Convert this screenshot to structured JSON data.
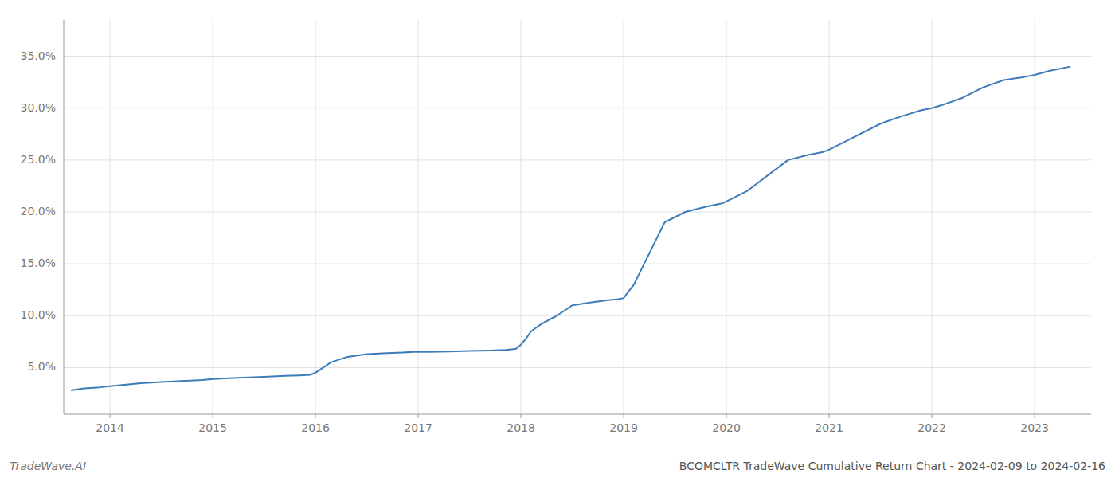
{
  "chart_data": {
    "type": "line",
    "title": "BCOMCLTR TradeWave Cumulative Return Chart - 2024-02-09 to 2024-02-16",
    "annotations": [
      "TradeWave.AI"
    ],
    "color": "#3d7cb8",
    "grid": true,
    "x": [
      2013.62,
      2013.75,
      2013.9,
      2014.0,
      2014.1,
      2014.3,
      2014.5,
      2014.7,
      2014.9,
      2015.0,
      2015.2,
      2015.5,
      2015.7,
      2015.85,
      2015.95,
      2016.0,
      2016.15,
      2016.3,
      2016.5,
      2016.7,
      2016.85,
      2016.95,
      2017.0,
      2017.1,
      2017.3,
      2017.5,
      2017.7,
      2017.85,
      2017.95,
      2018.0,
      2018.05,
      2018.1,
      2018.2,
      2018.35,
      2018.5,
      2018.7,
      2018.85,
      2018.95,
      2019.0,
      2019.1,
      2019.25,
      2019.4,
      2019.6,
      2019.8,
      2019.95,
      2020.0,
      2020.1,
      2020.2,
      2020.4,
      2020.6,
      2020.8,
      2020.95,
      2021.0,
      2021.2,
      2021.5,
      2021.7,
      2021.9,
      2022.0,
      2022.1,
      2022.3,
      2022.5,
      2022.7,
      2022.9,
      2023.0,
      2023.15,
      2023.35
    ],
    "values": [
      2.8,
      3.0,
      3.1,
      3.2,
      3.3,
      3.5,
      3.6,
      3.7,
      3.8,
      3.9,
      4.0,
      4.1,
      4.2,
      4.25,
      4.3,
      4.5,
      5.5,
      6.0,
      6.3,
      6.4,
      6.45,
      6.5,
      6.5,
      6.5,
      6.55,
      6.6,
      6.65,
      6.7,
      6.8,
      7.2,
      7.8,
      8.5,
      9.2,
      10.0,
      11.0,
      11.3,
      11.5,
      11.6,
      11.7,
      13.0,
      16.0,
      19.0,
      20.0,
      20.5,
      20.8,
      21.0,
      21.5,
      22.0,
      23.5,
      25.0,
      25.5,
      25.8,
      26.0,
      27.0,
      28.5,
      29.2,
      29.8,
      30.0,
      30.3,
      31.0,
      32.0,
      32.7,
      33.0,
      33.2,
      33.6,
      34.0
    ],
    "xlim": [
      2013.55,
      2023.55
    ],
    "xticks": [
      2014,
      2015,
      2016,
      2017,
      2018,
      2019,
      2020,
      2021,
      2022,
      2023
    ],
    "ylim": [
      0.5,
      38.5
    ],
    "yticks": [
      {
        "value": 5.0,
        "label": "5.0%"
      },
      {
        "value": 10.0,
        "label": "10.0%"
      },
      {
        "value": 15.0,
        "label": "15.0%"
      },
      {
        "value": 20.0,
        "label": "20.0%"
      },
      {
        "value": 25.0,
        "label": "25.0%"
      },
      {
        "value": 30.0,
        "label": "30.0%"
      },
      {
        "value": 35.0,
        "label": "35.0%"
      }
    ]
  }
}
